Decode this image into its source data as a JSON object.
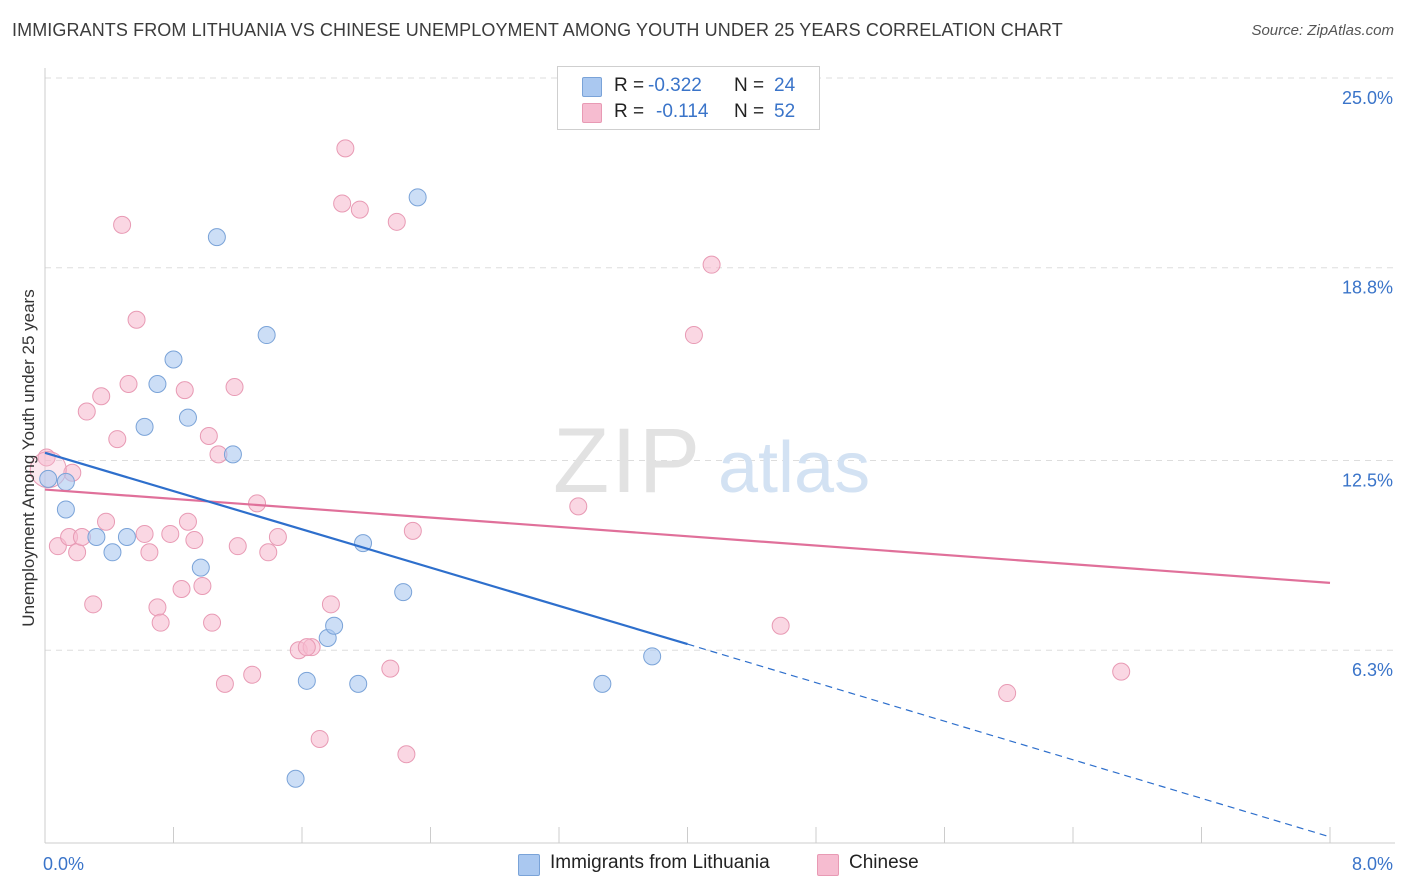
{
  "title": "IMMIGRANTS FROM LITHUANIA VS CHINESE UNEMPLOYMENT AMONG YOUTH UNDER 25 YEARS CORRELATION CHART",
  "source": "Source: ZipAtlas.com",
  "watermark": {
    "zip": "ZIP",
    "atlas": "atlas"
  },
  "legend": {
    "r_label": "R =",
    "n_label": "N =",
    "series1": {
      "r": "-0.322",
      "n": "24"
    },
    "series2": {
      "r": "-0.114",
      "n": "52"
    }
  },
  "colors": {
    "blue_fill": "#aac8f0",
    "blue_stroke": "#7aa3d8",
    "blue_line": "#2e6fcc",
    "pink_fill": "#f6bcd0",
    "pink_stroke": "#e89ab4",
    "pink_line": "#e0709a",
    "tick_text": "#3a74c9",
    "grid": "#dddddd"
  },
  "chart_data": {
    "type": "scatter",
    "title": "IMMIGRANTS FROM LITHUANIA VS CHINESE UNEMPLOYMENT AMONG YOUTH UNDER 25 YEARS CORRELATION CHART",
    "xlabel": "",
    "ylabel": "Unemployment Among Youth under 25 years",
    "xlim": [
      0,
      8.0
    ],
    "ylim": [
      0,
      25.0
    ],
    "x_tick_labels": [
      "0.0%",
      "8.0%"
    ],
    "y_ticks": [
      6.3,
      12.5,
      18.8,
      25.0
    ],
    "y_tick_labels": [
      "6.3%",
      "12.5%",
      "18.8%",
      "25.0%"
    ],
    "grid": true,
    "legend_position": "top-center",
    "series": [
      {
        "name": "Immigrants from Lithuania",
        "r": -0.322,
        "n": 24,
        "points": [
          [
            0.02,
            11.9
          ],
          [
            0.13,
            11.8
          ],
          [
            0.13,
            10.9
          ],
          [
            0.32,
            10.0
          ],
          [
            0.42,
            9.5
          ],
          [
            0.51,
            10.0
          ],
          [
            0.62,
            13.6
          ],
          [
            0.7,
            15.0
          ],
          [
            0.8,
            15.8
          ],
          [
            0.89,
            13.9
          ],
          [
            0.97,
            9.0
          ],
          [
            1.07,
            19.8
          ],
          [
            1.17,
            12.7
          ],
          [
            1.38,
            16.6
          ],
          [
            1.56,
            2.1
          ],
          [
            1.63,
            5.3
          ],
          [
            1.76,
            6.7
          ],
          [
            1.8,
            7.1
          ],
          [
            1.95,
            5.2
          ],
          [
            1.98,
            9.8
          ],
          [
            2.23,
            8.2
          ],
          [
            2.32,
            21.1
          ],
          [
            3.47,
            5.2
          ],
          [
            3.78,
            6.1
          ]
        ],
        "trend": {
          "x0": 0.0,
          "y0": 12.75,
          "x1": 4.0,
          "y1": 6.5
        },
        "trend_extension": {
          "x0": 4.0,
          "y0": 6.5,
          "x1": 8.0,
          "y1": 0.2
        }
      },
      {
        "name": "Chinese",
        "r": -0.114,
        "n": 52,
        "points": [
          [
            0.01,
            12.6
          ],
          [
            0.08,
            9.7
          ],
          [
            0.15,
            10.0
          ],
          [
            0.17,
            12.1
          ],
          [
            0.2,
            9.5
          ],
          [
            0.23,
            10.0
          ],
          [
            0.26,
            14.1
          ],
          [
            0.3,
            7.8
          ],
          [
            0.35,
            14.6
          ],
          [
            0.38,
            10.5
          ],
          [
            0.45,
            13.2
          ],
          [
            0.48,
            20.2
          ],
          [
            0.52,
            15.0
          ],
          [
            0.57,
            17.1
          ],
          [
            0.62,
            10.1
          ],
          [
            0.65,
            9.5
          ],
          [
            0.7,
            7.7
          ],
          [
            0.72,
            7.2
          ],
          [
            0.78,
            10.1
          ],
          [
            0.85,
            8.3
          ],
          [
            0.87,
            14.8
          ],
          [
            0.89,
            10.5
          ],
          [
            0.93,
            9.9
          ],
          [
            0.98,
            8.4
          ],
          [
            1.02,
            13.3
          ],
          [
            1.04,
            7.2
          ],
          [
            1.08,
            12.7
          ],
          [
            1.12,
            5.2
          ],
          [
            1.18,
            14.9
          ],
          [
            1.2,
            9.7
          ],
          [
            1.29,
            5.5
          ],
          [
            1.32,
            11.1
          ],
          [
            1.39,
            9.5
          ],
          [
            1.45,
            10.0
          ],
          [
            1.58,
            6.3
          ],
          [
            1.66,
            6.4
          ],
          [
            1.71,
            3.4
          ],
          [
            1.78,
            7.8
          ],
          [
            1.85,
            20.9
          ],
          [
            1.87,
            22.7
          ],
          [
            1.96,
            20.7
          ],
          [
            2.15,
            5.7
          ],
          [
            2.19,
            20.3
          ],
          [
            2.25,
            2.9
          ],
          [
            2.29,
            10.2
          ],
          [
            3.32,
            11.0
          ],
          [
            4.04,
            16.6
          ],
          [
            4.15,
            18.9
          ],
          [
            4.58,
            7.1
          ],
          [
            5.99,
            4.9
          ],
          [
            6.7,
            5.6
          ],
          [
            1.63,
            6.4
          ]
        ],
        "trend": {
          "x0": 0.0,
          "y0": 11.55,
          "x1": 8.0,
          "y1": 8.5
        }
      }
    ]
  },
  "bottom_legend": {
    "series1": "Immigrants from Lithuania",
    "series2": "Chinese"
  }
}
